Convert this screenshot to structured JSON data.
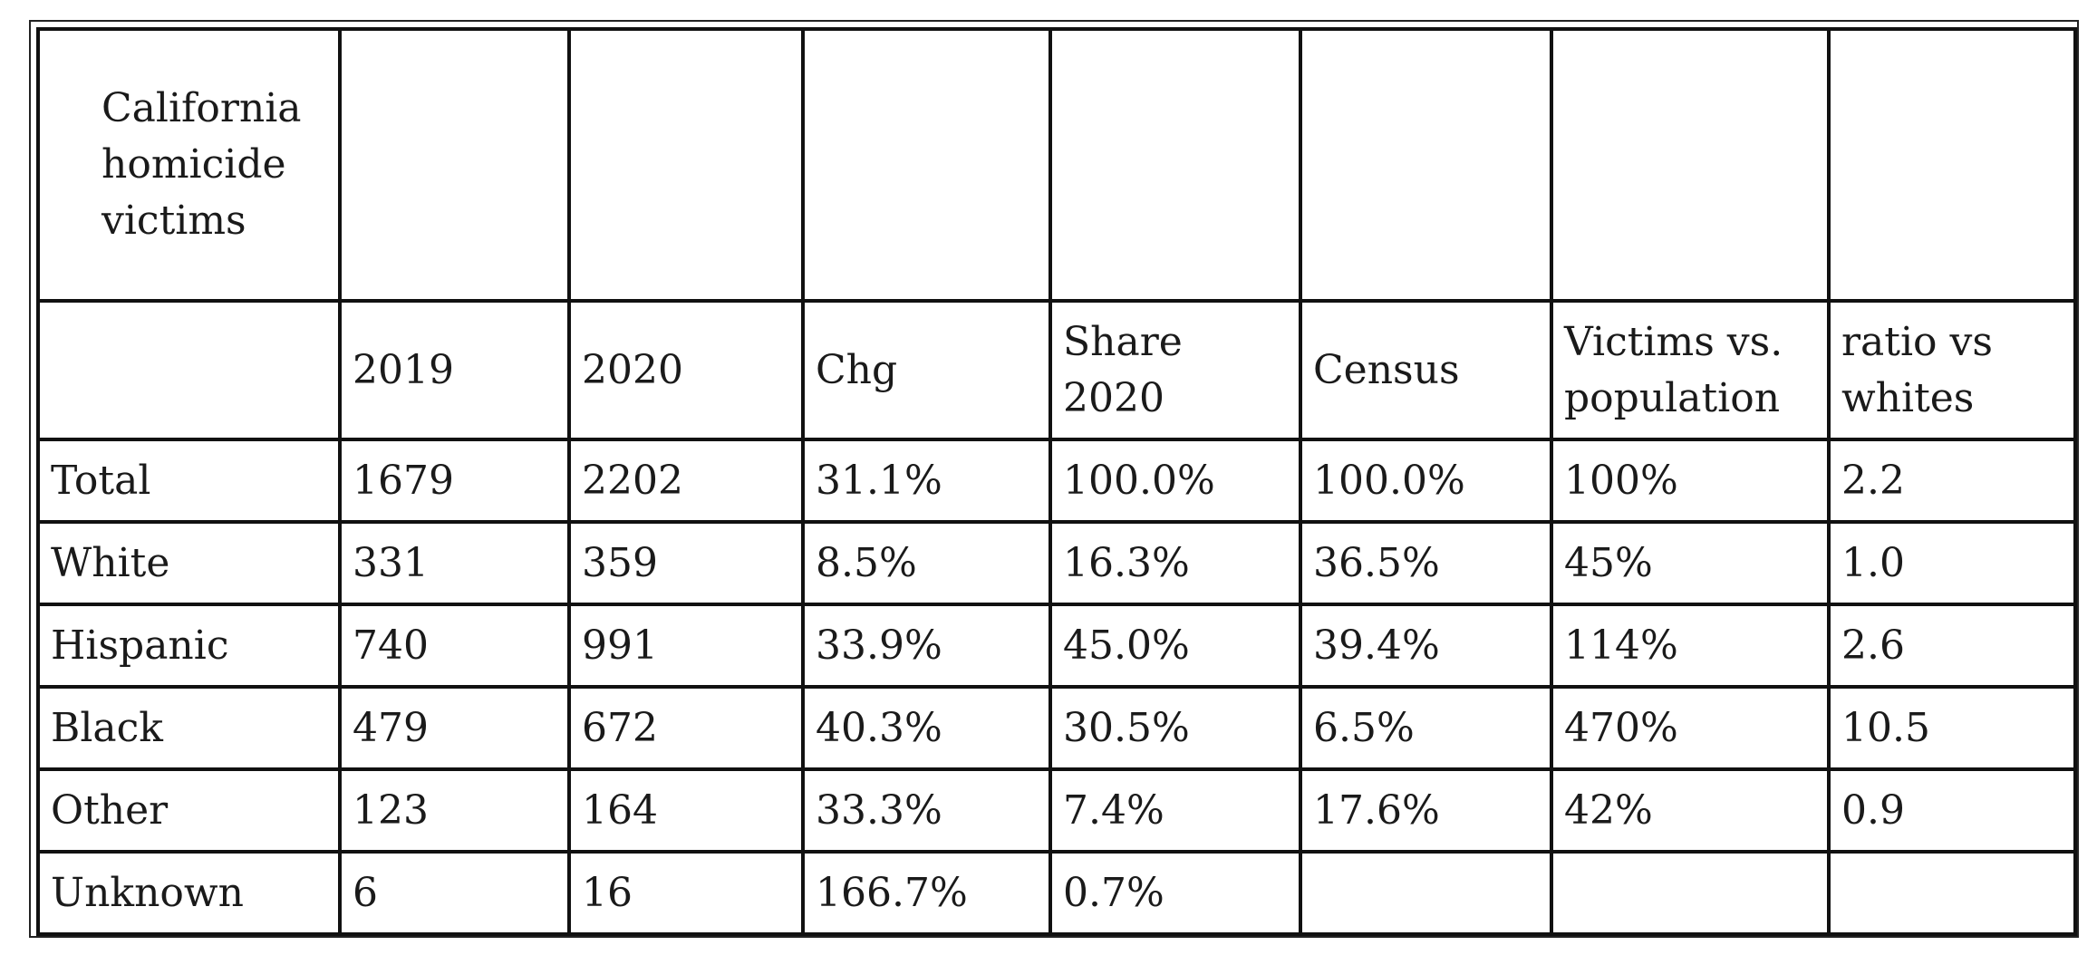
{
  "table": {
    "caption": "California homicide victims",
    "headers": [
      "",
      "2019",
      "2020",
      "Chg",
      "Share 2020",
      "Census",
      "Victims vs. population",
      "ratio vs whites"
    ],
    "rows": [
      [
        "Total",
        "1679",
        "2202",
        "31.1%",
        "100.0%",
        "100.0%",
        "100%",
        "2.2"
      ],
      [
        "White",
        "331",
        "359",
        "8.5%",
        "16.3%",
        "36.5%",
        "45%",
        "1.0"
      ],
      [
        "Hispanic",
        "740",
        "991",
        "33.9%",
        "45.0%",
        "39.4%",
        "114%",
        "2.6"
      ],
      [
        "Black",
        "479",
        "672",
        "40.3%",
        "30.5%",
        "6.5%",
        "470%",
        "10.5"
      ],
      [
        "Other",
        "123",
        "164",
        "33.3%",
        "7.4%",
        "17.6%",
        "42%",
        "0.9"
      ],
      [
        "Unknown",
        "6",
        "16",
        "166.7%",
        "0.7%",
        "",
        "",
        ""
      ]
    ]
  }
}
